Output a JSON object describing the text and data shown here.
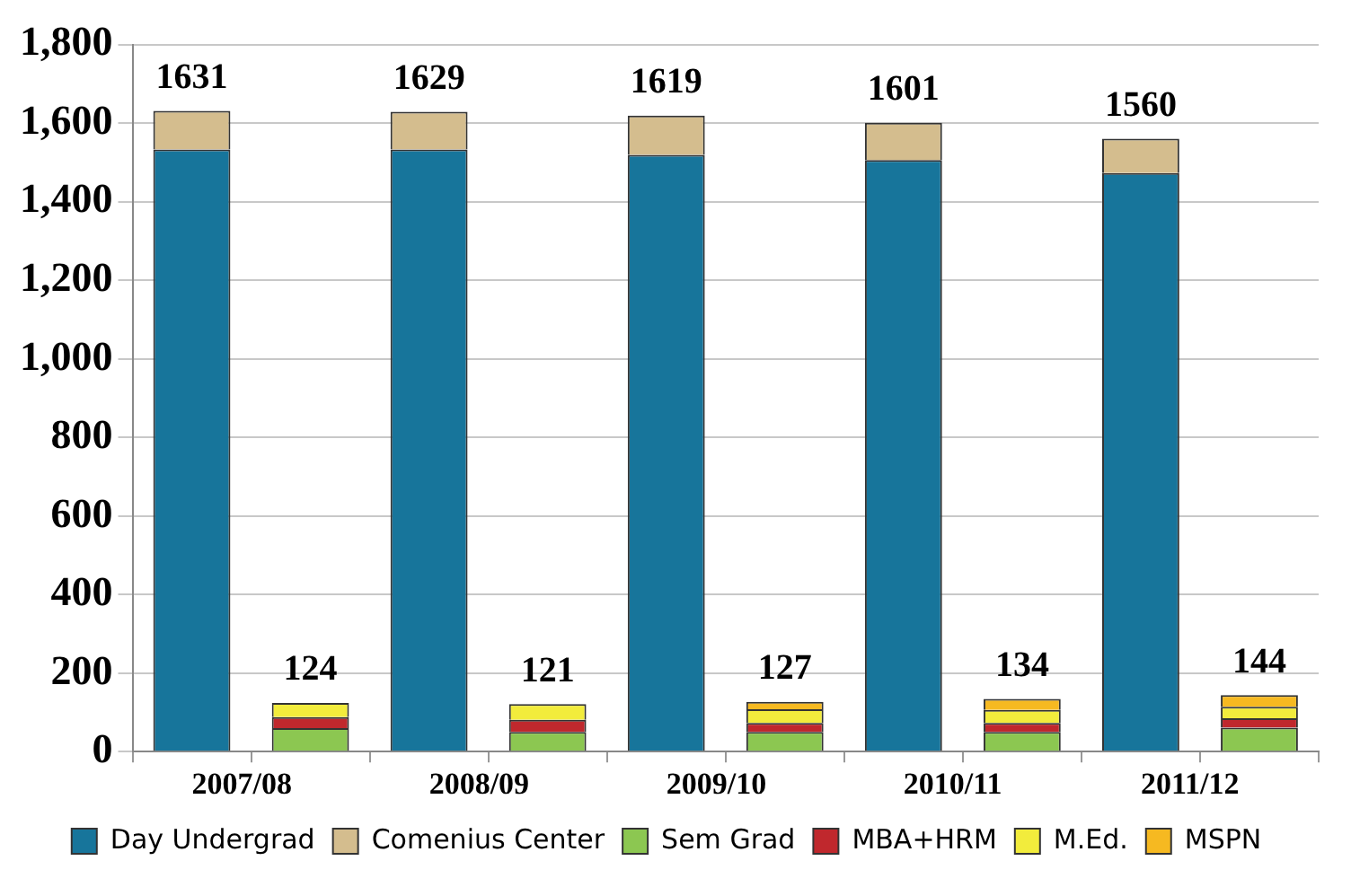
{
  "chart_data": {
    "type": "bar",
    "stacked": true,
    "categories": [
      "2007/08",
      null,
      "2008/09",
      null,
      "2009/10",
      null,
      "2010/11",
      null,
      "2011/12",
      null
    ],
    "series": [
      {
        "name": "Day Undergrad",
        "color": "#17759b",
        "values": [
          1533,
          null,
          1533,
          null,
          1519,
          null,
          1506,
          null,
          1473,
          null
        ]
      },
      {
        "name": "Comenius Center",
        "color": "#d4bd8e",
        "values": [
          98,
          null,
          96,
          null,
          100,
          null,
          95,
          null,
          87,
          null
        ]
      },
      {
        "name": "Sem Grad",
        "color": "#8cc751",
        "values": [
          null,
          60,
          null,
          50,
          null,
          50,
          null,
          50,
          null,
          61
        ]
      },
      {
        "name": "MBA+HRM",
        "color": "#c0282d",
        "values": [
          null,
          28,
          null,
          31,
          null,
          23,
          null,
          23,
          null,
          24
        ]
      },
      {
        "name": "M.Ed.",
        "color": "#f2ec3c",
        "values": [
          null,
          36,
          null,
          40,
          null,
          35,
          null,
          33,
          null,
          29
        ]
      },
      {
        "name": "MSPN",
        "color": "#f6b921",
        "values": [
          null,
          0,
          null,
          0,
          null,
          19,
          null,
          28,
          null,
          30
        ]
      }
    ],
    "totals": [
      "1631",
      "124",
      "1629",
      "121",
      "1619",
      "127",
      "1601",
      "134",
      "1560",
      "144"
    ],
    "ylim": [
      0,
      1800
    ],
    "yticks": [
      0,
      200,
      400,
      600,
      800,
      {
        "value": 1000,
        "label": "1,000"
      },
      {
        "value": 1200,
        "label": "1,200"
      },
      {
        "value": 1400,
        "label": "1,400"
      },
      {
        "value": 1600,
        "label": "1,600"
      },
      {
        "value": 1800,
        "label": "1,800"
      }
    ],
    "grid": "y",
    "legend": "bottom"
  }
}
